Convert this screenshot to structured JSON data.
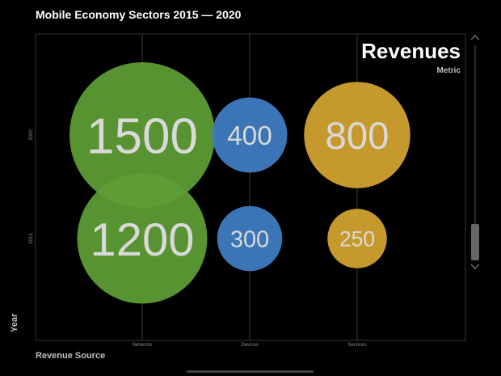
{
  "chart_data": {
    "type": "bubble",
    "title": "Mobile Economy Sectors 2015 — 2020",
    "xlabel": "Revenue Source",
    "ylabel": "Year",
    "metric_title": "Revenues",
    "metric_subtitle": "Metric",
    "categories": [
      "Networks",
      "Devices",
      "Services"
    ],
    "years": [
      "2020",
      "2015"
    ],
    "points": [
      {
        "x": "Networks",
        "y": "2020",
        "value": 1500,
        "color": "#5e9e35"
      },
      {
        "x": "Devices",
        "y": "2020",
        "value": 400,
        "color": "#3f7ec4"
      },
      {
        "x": "Services",
        "y": "2020",
        "value": 800,
        "color": "#d4a52f"
      },
      {
        "x": "Networks",
        "y": "2015",
        "value": 1200,
        "color": "#5e9e35"
      },
      {
        "x": "Devices",
        "y": "2015",
        "value": 300,
        "color": "#3f7ec4"
      },
      {
        "x": "Services",
        "y": "2015",
        "value": 250,
        "color": "#d4a52f"
      }
    ],
    "grid": true
  }
}
